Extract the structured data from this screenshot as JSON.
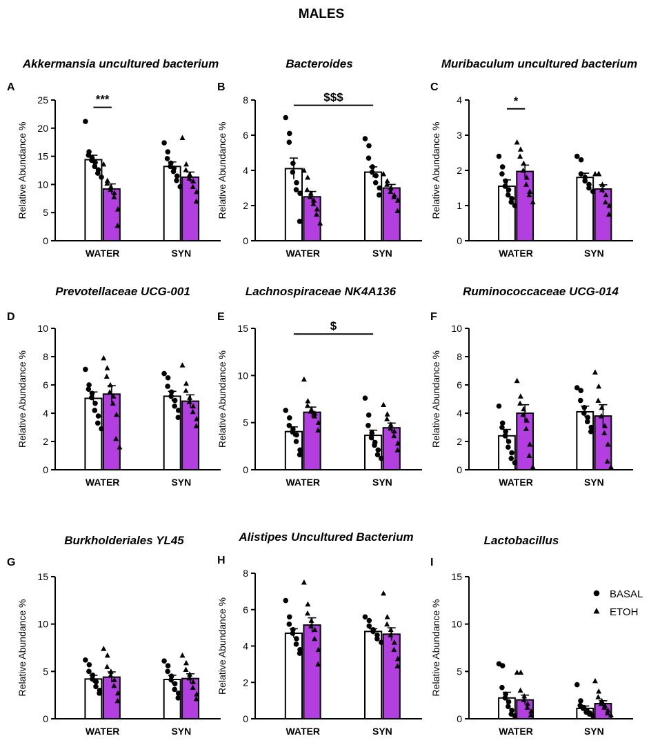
{
  "figure_title": "MALES",
  "legend": {
    "items": [
      {
        "label": "BASAL",
        "marker": "circle"
      },
      {
        "label": "ETOH",
        "marker": "triangle"
      }
    ]
  },
  "colors": {
    "basal_fill": "#ffffff",
    "etoh_fill": "#b33fe0",
    "stroke": "#000000"
  },
  "chart_data": [
    {
      "type": "bar",
      "panel": "A",
      "title": "Akkermansia uncultured bacterium",
      "ylabel": "Relative Abundance %",
      "xlabel": "",
      "categories": [
        "WATER",
        "SYN"
      ],
      "ylim": [
        0,
        25
      ],
      "yticks": [
        "0",
        "5",
        "10",
        "15",
        "20",
        "25"
      ],
      "series": [
        {
          "name": "BASAL",
          "values": [
            14.4,
            13.2
          ],
          "sem": [
            0.8,
            0.8
          ],
          "points": [
            [
              21.2,
              15.8,
              15.2,
              14.7,
              14.3,
              13.9,
              13.2,
              12.6,
              12.0,
              11.3
            ],
            [
              17.4,
              15.8,
              14.6,
              13.8,
              13.2,
              12.9,
              12.3,
              11.5,
              10.7,
              9.6
            ]
          ]
        },
        {
          "name": "ETOH",
          "values": [
            9.2,
            11.3
          ],
          "sem": [
            0.9,
            0.9
          ],
          "points": [
            [
              13.6,
              10.7,
              10.2,
              9.6,
              9.1,
              8.5,
              7.8,
              5.6,
              2.7
            ],
            [
              18.3,
              13.6,
              12.6,
              11.8,
              11.1,
              10.6,
              9.6,
              8.7,
              7.0
            ]
          ]
        }
      ],
      "annotations": [
        {
          "text": "***",
          "from": "WATER:BASAL",
          "to": "WATER:ETOH",
          "y": 23.7
        }
      ]
    },
    {
      "type": "bar",
      "panel": "B",
      "title": "Bacteroides",
      "ylabel": "Relative Abundance %",
      "xlabel": "",
      "categories": [
        "WATER",
        "SYN"
      ],
      "ylim": [
        0,
        8
      ],
      "yticks": [
        "0",
        "2",
        "4",
        "6",
        "8"
      ],
      "series": [
        {
          "name": "BASAL",
          "values": [
            4.1,
            3.9
          ],
          "sem": [
            0.6,
            0.3
          ],
          "points": [
            [
              7.0,
              6.1,
              5.6,
              4.4,
              3.9,
              3.3,
              2.9,
              2.7,
              1.1
            ],
            [
              5.8,
              5.4,
              4.7,
              4.2,
              3.9,
              3.7,
              3.3,
              3.0,
              2.6
            ]
          ]
        },
        {
          "name": "ETOH",
          "values": [
            2.5,
            3.0
          ],
          "sem": [
            0.3,
            0.2
          ],
          "points": [
            [
              4.0,
              3.6,
              2.9,
              2.7,
              2.5,
              2.3,
              2.1,
              1.8,
              1.5,
              1.0
            ],
            [
              3.8,
              3.4,
              3.2,
              3.0,
              2.8,
              2.6,
              2.5,
              2.3,
              1.7
            ]
          ]
        }
      ],
      "annotations": [
        {
          "text": "$$$",
          "from": "WATER:BASAL",
          "to": "SYN:BASAL",
          "y": 7.7
        }
      ]
    },
    {
      "type": "bar",
      "panel": "C",
      "title": "Muribaculum uncultured bacterium",
      "ylabel": "Relative Abundance %",
      "xlabel": "",
      "categories": [
        "WATER",
        "SYN"
      ],
      "ylim": [
        0,
        4
      ],
      "yticks": [
        "0",
        "1",
        "2",
        "3",
        "4"
      ],
      "series": [
        {
          "name": "BASAL",
          "values": [
            1.55,
            1.8
          ],
          "sem": [
            0.18,
            0.12
          ],
          "points": [
            [
              2.4,
              2.1,
              1.9,
              1.7,
              1.55,
              1.45,
              1.3,
              1.2,
              1.1,
              1.0
            ],
            [
              2.4,
              2.3,
              1.9,
              1.8,
              1.7,
              1.6,
              1.5,
              1.4
            ]
          ]
        },
        {
          "name": "ETOH",
          "values": [
            1.97,
            1.47
          ],
          "sem": [
            0.18,
            0.12
          ],
          "points": [
            [
              2.8,
              2.6,
              2.4,
              2.2,
              2.0,
              1.8,
              1.6,
              1.4,
              1.3,
              1.1
            ],
            [
              1.9,
              1.9,
              1.9,
              1.6,
              1.45,
              1.3,
              1.1,
              1.0,
              0.75
            ]
          ]
        }
      ],
      "annotations": [
        {
          "text": "*",
          "from": "WATER:BASAL",
          "to": "WATER:ETOH",
          "y": 3.75
        }
      ]
    },
    {
      "type": "bar",
      "panel": "D",
      "title": "Prevotellaceae UCG-001",
      "ylabel": "Relative Abundance %",
      "xlabel": "",
      "categories": [
        "WATER",
        "SYN"
      ],
      "ylim": [
        0,
        10
      ],
      "yticks": [
        "0",
        "2",
        "4",
        "6",
        "8",
        "10"
      ],
      "series": [
        {
          "name": "BASAL",
          "values": [
            5.05,
            5.2
          ],
          "sem": [
            0.45,
            0.35
          ],
          "points": [
            [
              7.1,
              6.0,
              5.7,
              5.4,
              5.1,
              4.7,
              4.2,
              3.8,
              3.3,
              2.9
            ],
            [
              6.8,
              6.5,
              5.9,
              5.5,
              5.2,
              4.9,
              4.5,
              4.2,
              3.7
            ]
          ]
        },
        {
          "name": "ETOH",
          "values": [
            5.35,
            4.85
          ],
          "sem": [
            0.6,
            0.45
          ],
          "points": [
            [
              7.9,
              7.2,
              6.6,
              6.0,
              5.5,
              5.2,
              4.7,
              3.9,
              2.2,
              1.6
            ],
            [
              7.4,
              6.1,
              5.6,
              5.1,
              4.8,
              4.5,
              4.1,
              3.6,
              3.1
            ]
          ]
        }
      ],
      "annotations": []
    },
    {
      "type": "bar",
      "panel": "E",
      "title": "Lachnospiraceae NK4A136",
      "ylabel": "Relative Abundance %",
      "xlabel": "",
      "categories": [
        "WATER",
        "SYN"
      ],
      "ylim": [
        0,
        15
      ],
      "yticks": [
        "0",
        "5",
        "10",
        "15"
      ],
      "series": [
        {
          "name": "BASAL",
          "values": [
            4.05,
            3.65
          ],
          "sem": [
            0.5,
            0.55
          ],
          "points": [
            [
              6.3,
              5.5,
              4.7,
              4.3,
              4.0,
              3.7,
              3.0,
              2.1,
              1.6
            ],
            [
              7.6,
              5.8,
              4.7,
              3.9,
              3.4,
              2.9,
              2.6,
              2.1,
              1.6,
              1.2
            ]
          ]
        },
        {
          "name": "ETOH",
          "values": [
            6.1,
            4.45
          ],
          "sem": [
            0.55,
            0.5
          ],
          "points": [
            [
              9.6,
              7.3,
              6.8,
              6.4,
              6.2,
              6.0,
              5.7,
              5.0,
              4.2
            ],
            [
              6.9,
              5.9,
              5.4,
              4.8,
              4.4,
              4.1,
              3.6,
              2.8,
              2.1
            ]
          ]
        }
      ],
      "annotations": [
        {
          "text": "$",
          "from": "WATER:BASAL",
          "to": "SYN:BASAL",
          "y": 14.4
        }
      ]
    },
    {
      "type": "bar",
      "panel": "F",
      "title": "Ruminococcaceae UCG-014",
      "ylabel": "Relative Abundance %",
      "xlabel": "",
      "categories": [
        "WATER",
        "SYN"
      ],
      "ylim": [
        0,
        10
      ],
      "yticks": [
        "0",
        "2",
        "4",
        "6",
        "8",
        "10"
      ],
      "series": [
        {
          "name": "BASAL",
          "values": [
            2.4,
            4.1
          ],
          "sem": [
            0.45,
            0.4
          ],
          "points": [
            [
              4.5,
              3.3,
              3.0,
              2.7,
              2.4,
              2.0,
              1.6,
              1.2,
              0.8,
              0.5
            ],
            [
              5.8,
              5.6,
              4.9,
              4.4,
              4.0,
              3.7,
              3.4,
              3.0,
              2.7
            ]
          ]
        },
        {
          "name": "ETOH",
          "values": [
            4.0,
            3.8
          ],
          "sem": [
            0.6,
            0.8
          ],
          "points": [
            [
              6.3,
              5.2,
              4.7,
              4.3,
              3.9,
              3.5,
              2.9,
              1.8,
              1.0,
              0.2
            ],
            [
              6.9,
              5.9,
              4.9,
              4.4,
              3.8,
              3.1,
              2.6,
              1.8,
              0.6,
              0.2
            ]
          ]
        }
      ],
      "annotations": []
    },
    {
      "type": "bar",
      "panel": "G",
      "title": "Burkholderiales YL45",
      "ylabel": "Relative Abundance %",
      "xlabel": "",
      "categories": [
        "WATER",
        "SYN"
      ],
      "ylim": [
        0,
        15
      ],
      "yticks": [
        "0",
        "5",
        "10",
        "15"
      ],
      "series": [
        {
          "name": "BASAL",
          "values": [
            4.2,
            4.15
          ],
          "sem": [
            0.4,
            0.45
          ],
          "points": [
            [
              6.2,
              5.7,
              5.0,
              4.6,
              4.2,
              3.9,
              3.4,
              3.0,
              2.7
            ],
            [
              6.1,
              5.6,
              5.0,
              4.5,
              4.1,
              3.7,
              3.1,
              2.7,
              2.2
            ]
          ]
        },
        {
          "name": "ETOH",
          "values": [
            4.4,
            4.25
          ],
          "sem": [
            0.55,
            0.5
          ],
          "points": [
            [
              7.4,
              6.7,
              5.5,
              5.0,
              4.6,
              4.1,
              3.5,
              2.7,
              1.9
            ],
            [
              6.7,
              5.9,
              5.2,
              4.7,
              4.3,
              3.9,
              3.3,
              2.6,
              2.1
            ]
          ]
        }
      ],
      "annotations": []
    },
    {
      "type": "bar",
      "panel": "H",
      "title": "Alistipes Uncultured Bacterium",
      "ylabel": "Relative Abundance %",
      "xlabel": "",
      "categories": [
        "WATER",
        "SYN"
      ],
      "ylim": [
        0,
        8
      ],
      "yticks": [
        "0",
        "2",
        "4",
        "6",
        "8"
      ],
      "series": [
        {
          "name": "BASAL",
          "values": [
            4.7,
            4.8
          ],
          "sem": [
            0.25,
            0.15
          ],
          "points": [
            [
              6.5,
              5.6,
              5.2,
              4.9,
              4.7,
              4.4,
              4.1,
              3.8,
              3.6
            ],
            [
              5.6,
              5.4,
              5.1,
              4.9,
              4.8,
              4.6,
              4.4,
              4.2
            ]
          ]
        },
        {
          "name": "ETOH",
          "values": [
            5.15,
            4.65
          ],
          "sem": [
            0.4,
            0.35
          ],
          "points": [
            [
              7.5,
              6.3,
              5.8,
              5.4,
              5.1,
              4.9,
              4.4,
              3.8,
              3.0
            ],
            [
              6.9,
              5.6,
              5.2,
              4.9,
              4.6,
              4.2,
              3.8,
              3.3,
              2.9
            ]
          ]
        }
      ],
      "annotations": []
    },
    {
      "type": "bar",
      "panel": "I",
      "title": "Lactobacillus",
      "ylabel": "Relative Abundance %",
      "xlabel": "",
      "categories": [
        "WATER",
        "SYN"
      ],
      "ylim": [
        0,
        15
      ],
      "yticks": [
        "0",
        "5",
        "10",
        "15"
      ],
      "series": [
        {
          "name": "BASAL",
          "values": [
            2.2,
            1.1
          ],
          "sem": [
            0.6,
            0.25
          ],
          "points": [
            [
              5.8,
              5.6,
              3.3,
              2.6,
              2.2,
              1.8,
              1.3,
              0.9,
              0.5,
              0.3
            ],
            [
              3.6,
              1.9,
              1.4,
              1.2,
              1.1,
              0.9,
              0.7,
              0.6,
              0.5,
              0.3
            ]
          ]
        },
        {
          "name": "ETOH",
          "values": [
            2.0,
            1.6
          ],
          "sem": [
            0.5,
            0.3
          ],
          "points": [
            [
              4.9,
              4.9,
              3.0,
              2.4,
              2.0,
              1.6,
              1.2,
              0.8,
              0.4
            ],
            [
              4.0,
              2.9,
              2.3,
              1.9,
              1.6,
              1.4,
              1.2,
              0.9,
              0.6,
              0.4
            ]
          ]
        }
      ],
      "annotations": []
    }
  ]
}
